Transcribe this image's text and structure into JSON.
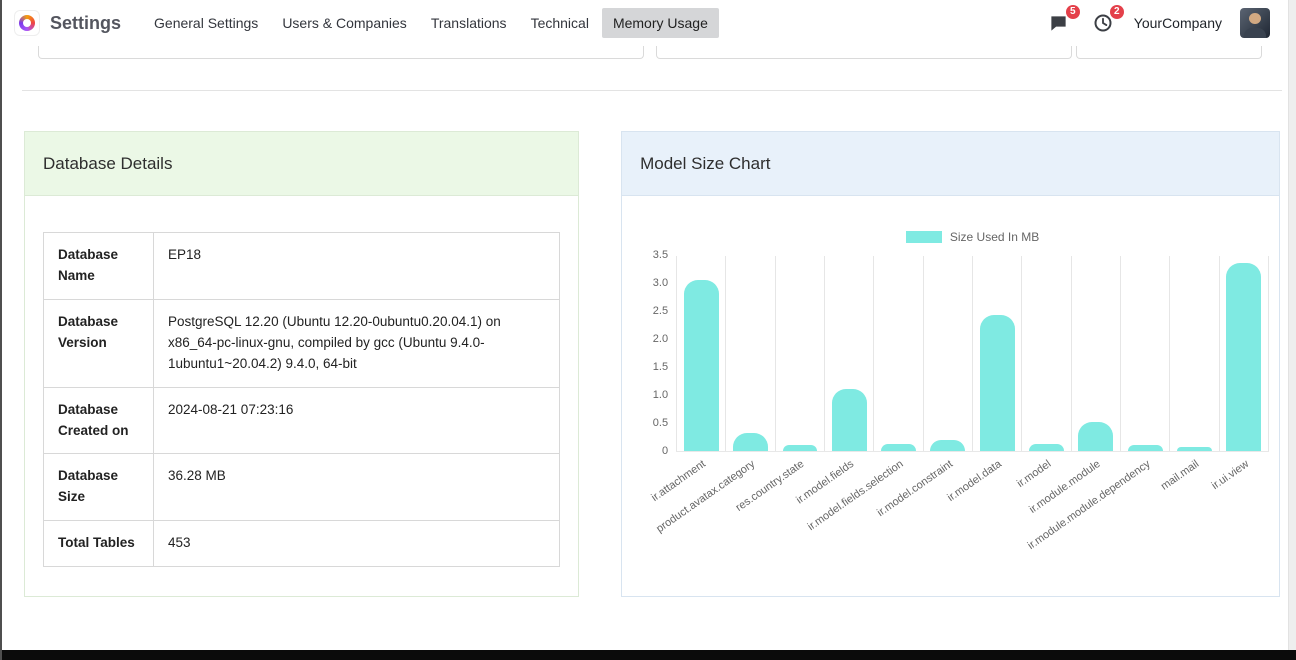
{
  "navbar": {
    "app_name": "Settings",
    "menu_items": [
      {
        "label": "General Settings",
        "active": false
      },
      {
        "label": "Users & Companies",
        "active": false
      },
      {
        "label": "Translations",
        "active": false
      },
      {
        "label": "Technical",
        "active": false
      },
      {
        "label": "Memory Usage",
        "active": true
      }
    ],
    "messages_badge": "5",
    "activities_badge": "2",
    "company_name": "YourCompany"
  },
  "database_details": {
    "title": "Database Details",
    "rows": [
      {
        "label": "Database Name",
        "value": "EP18"
      },
      {
        "label": "Database Version",
        "value": "PostgreSQL 12.20 (Ubuntu 12.20-0ubuntu0.20.04.1) on x86_64-pc-linux-gnu, compiled by gcc (Ubuntu 9.4.0-1ubuntu1~20.04.2) 9.4.0, 64-bit"
      },
      {
        "label": "Database Created on",
        "value": "2024-08-21 07:23:16"
      },
      {
        "label": "Database Size",
        "value": "36.28 MB"
      },
      {
        "label": "Total Tables",
        "value": "453"
      }
    ]
  },
  "model_size_chart": {
    "title": "Model Size Chart"
  },
  "chart_data": {
    "type": "bar",
    "title": "Model Size Chart",
    "legend": "Size Used In MB",
    "categories": [
      "ir.attachment",
      "product.avatax.category",
      "res.country.state",
      "ir.model.fields",
      "ir.model.fields.selection",
      "ir.model.constraint",
      "ir.model.data",
      "ir.model",
      "ir.module.module",
      "ir.module.module.dependency",
      "mail.mail",
      "ir.ui.view"
    ],
    "values": [
      3.05,
      0.32,
      0.1,
      1.1,
      0.12,
      0.2,
      2.42,
      0.12,
      0.52,
      0.1,
      0.08,
      3.35
    ],
    "ylim": [
      0,
      3.5
    ],
    "yticks": [
      0,
      0.5,
      1,
      1.5,
      2,
      2.5,
      3,
      3.5
    ],
    "bar_color": "#7FEAE2",
    "grid": "vertical",
    "legend_position": "top"
  }
}
